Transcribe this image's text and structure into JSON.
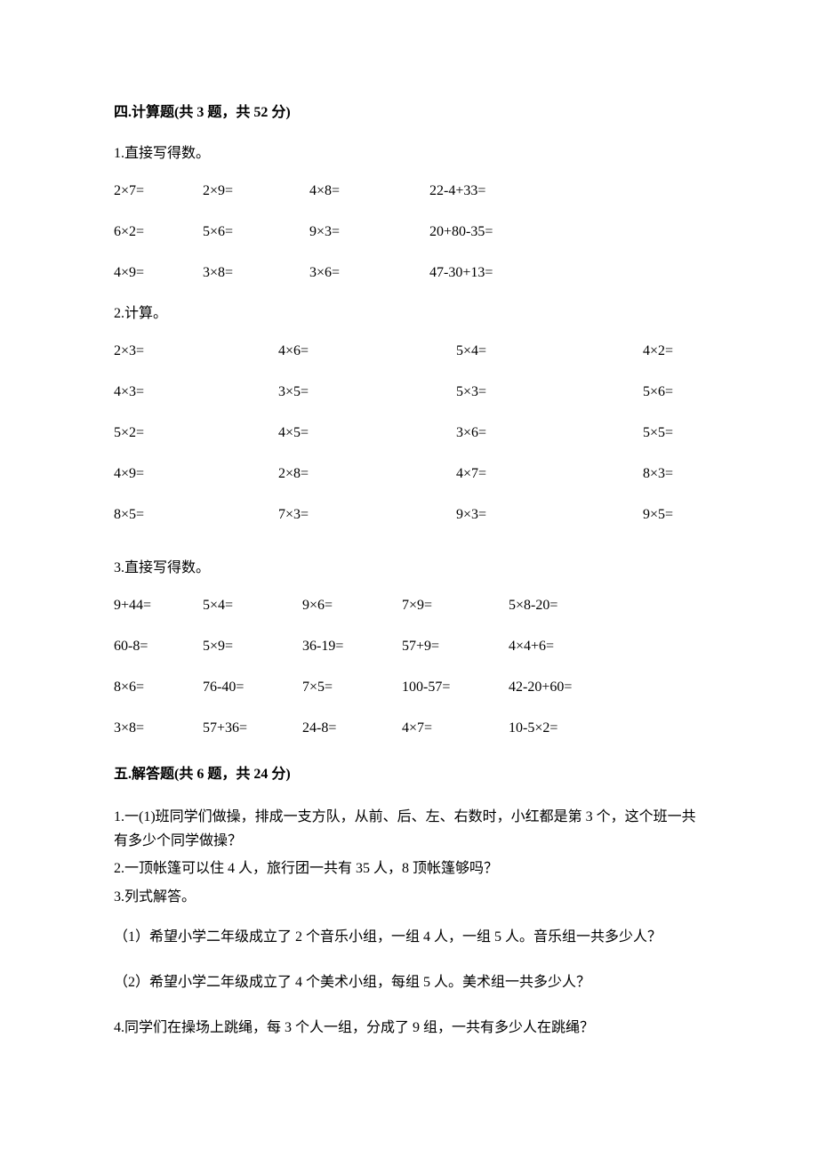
{
  "section4": {
    "heading": "四.计算题(共 3 题，共 52 分)",
    "q1": {
      "prompt": "1.直接写得数。",
      "rows": [
        [
          "2×7=",
          "2×9=",
          "4×8=",
          "22-4+33="
        ],
        [
          "6×2=",
          "5×6=",
          "9×3=",
          "20+80-35="
        ],
        [
          "4×9=",
          "3×8=",
          "3×6=",
          "47-30+13="
        ]
      ]
    },
    "q2": {
      "prompt": "2.计算。",
      "rows": [
        [
          "2×3=",
          "4×6=",
          "5×4=",
          "4×2="
        ],
        [
          "4×3=",
          "3×5=",
          "5×3=",
          "5×6="
        ],
        [
          "5×2=",
          "4×5=",
          "3×6=",
          "5×5="
        ],
        [
          "4×9=",
          "2×8=",
          "4×7=",
          "8×3="
        ],
        [
          "8×5=",
          "7×3=",
          "9×3=",
          "9×5="
        ]
      ]
    },
    "q3": {
      "prompt": "3.直接写得数。",
      "rows": [
        [
          "9+44=",
          "5×4=",
          "9×6=",
          "7×9=",
          "5×8-20="
        ],
        [
          "60-8=",
          "5×9=",
          "36-19=",
          "57+9=",
          "4×4+6="
        ],
        [
          "8×6=",
          "76-40=",
          "7×5=",
          "100-57=",
          "42-20+60="
        ],
        [
          "3×8=",
          "57+36=",
          "24-8=",
          "4×7=",
          "10-5×2="
        ]
      ]
    }
  },
  "section5": {
    "heading": "五.解答题(共 6 题，共 24 分)",
    "q1": "1.一(1)班同学们做操，排成一支方队，从前、后、左、右数时，小红都是第 3 个，这个班一共有多少个同学做操？",
    "q2": "2.一顶帐篷可以住 4 人，旅行团一共有 35 人，8 顶帐篷够吗？",
    "q3": "3.列式解答。",
    "q3a": "（1）希望小学二年级成立了 2 个音乐小组，一组 4 人，一组 5 人。音乐组一共多少人？",
    "q3b": "（2）希望小学二年级成立了 4 个美术小组，每组 5 人。美术组一共多少人？",
    "q4": "4.同学们在操场上跳绳，每 3 个人一组，分成了 9 组，一共有多少人在跳绳？"
  }
}
